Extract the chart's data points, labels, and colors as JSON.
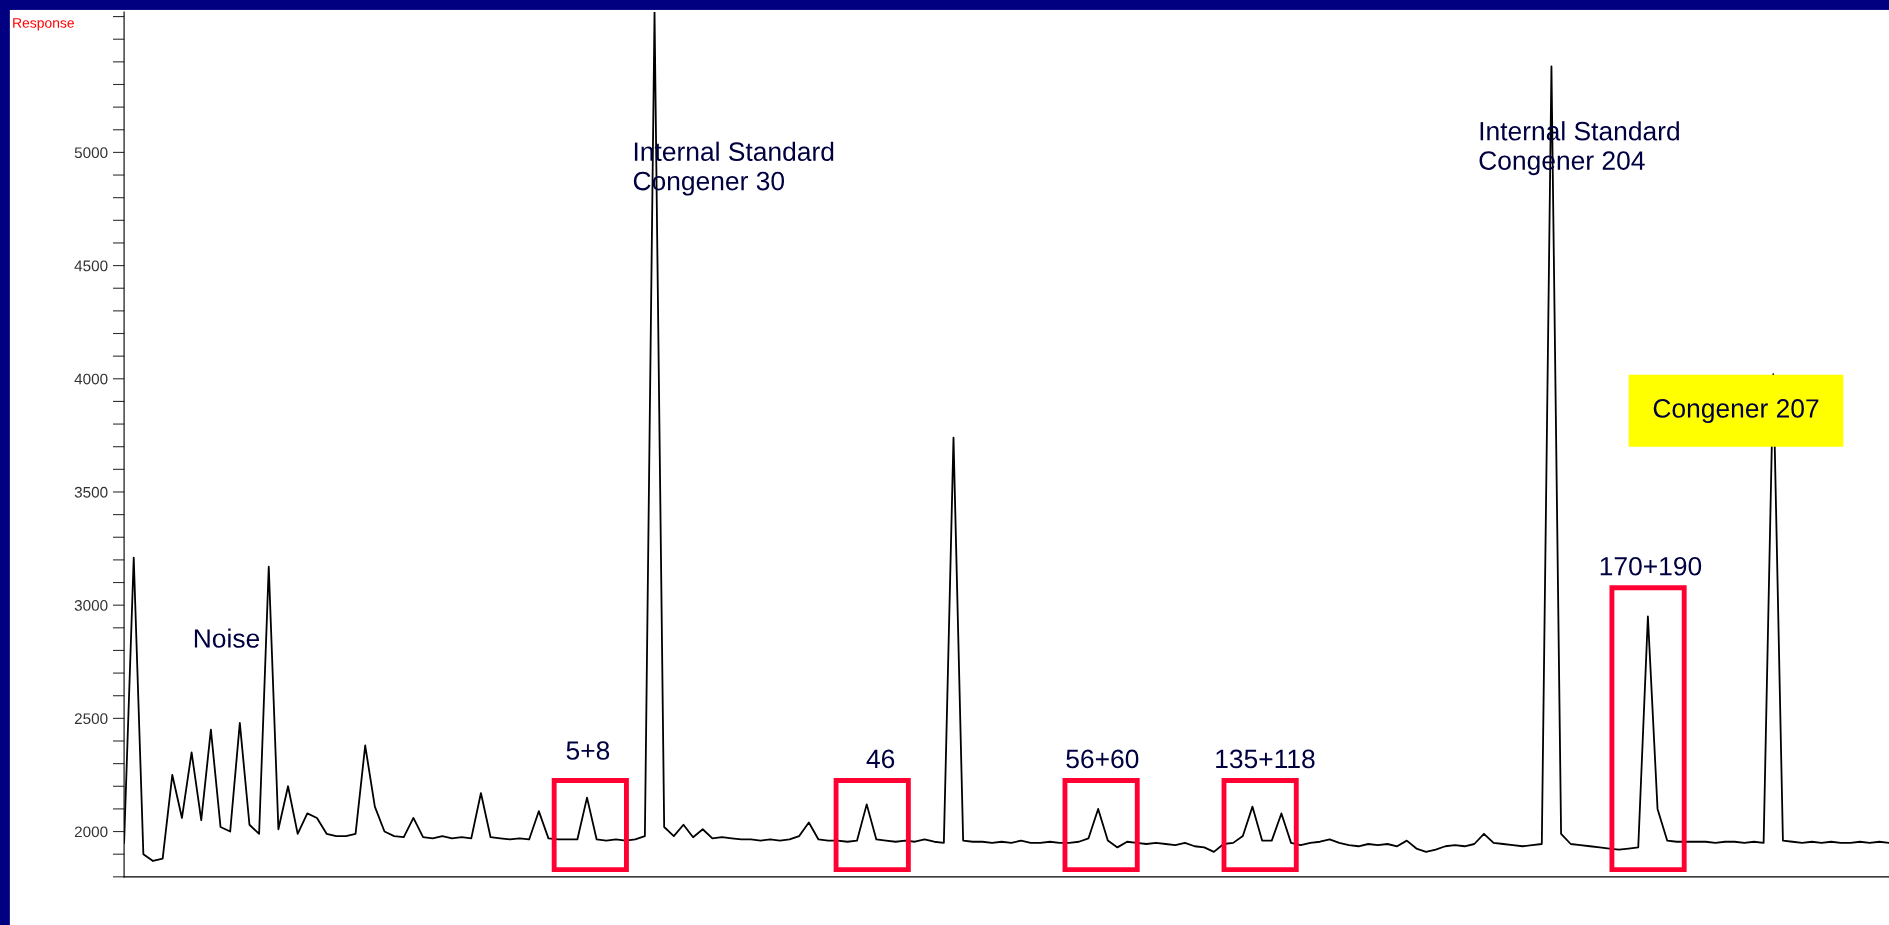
{
  "chart_data": {
    "type": "line",
    "ylabel": "Response",
    "categories": [
      null,
      null,
      null,
      null,
      null,
      null,
      null,
      null,
      null,
      null,
      null,
      null,
      null,
      null,
      null,
      null,
      null,
      null,
      null,
      null,
      null,
      null,
      null,
      null,
      null,
      null,
      null,
      null,
      null,
      null,
      null,
      null,
      null,
      null,
      null,
      null,
      null,
      null,
      null,
      null,
      null,
      null,
      null,
      null,
      null,
      null,
      null,
      null,
      null,
      null,
      null,
      null,
      null,
      null,
      null,
      null,
      null,
      null,
      null,
      null,
      null,
      null,
      null,
      null,
      null,
      null,
      null,
      null,
      null,
      null,
      null,
      null,
      null,
      null,
      null,
      null,
      null,
      null,
      null,
      null,
      null,
      null,
      null,
      null,
      null,
      null,
      null,
      null,
      null,
      null,
      null,
      null,
      null,
      null,
      null,
      null,
      null,
      null,
      null,
      null,
      null,
      null,
      null,
      null,
      null,
      null,
      null,
      null,
      null,
      null,
      null,
      null,
      null,
      null,
      null,
      null,
      null,
      null,
      null,
      null,
      null,
      null,
      null,
      null,
      null,
      null,
      null,
      null,
      null,
      null,
      null,
      null,
      null,
      null,
      null,
      null,
      null,
      null,
      null,
      null,
      null,
      null,
      null,
      null,
      null,
      null,
      null,
      null,
      null,
      null,
      null,
      null,
      null,
      null,
      null,
      null,
      null,
      null,
      null,
      null,
      null,
      null,
      null,
      null,
      null,
      null,
      null,
      null,
      null,
      null,
      null,
      null,
      null,
      null,
      null,
      null,
      null,
      null,
      null,
      null,
      null,
      null,
      null,
      null
    ],
    "series": [
      {
        "color": "#000000",
        "values": [
          1950,
          3210,
          1900,
          1870,
          1880,
          2250,
          2060,
          2350,
          2050,
          2450,
          2020,
          2000,
          2480,
          2030,
          1990,
          3170,
          2010,
          2200,
          1990,
          2080,
          2060,
          1990,
          1980,
          1980,
          1990,
          2380,
          2110,
          2000,
          1980,
          1975,
          2060,
          1975,
          1970,
          1980,
          1970,
          1975,
          1970,
          2170,
          1975,
          1970,
          1965,
          1970,
          1965,
          2090,
          1970,
          1965,
          1965,
          1965,
          2150,
          1965,
          1960,
          1965,
          1960,
          1965,
          1980,
          5620,
          2020,
          1980,
          2030,
          1975,
          2010,
          1970,
          1975,
          1970,
          1965,
          1965,
          1960,
          1965,
          1960,
          1965,
          1980,
          2040,
          1965,
          1960,
          1960,
          1955,
          1960,
          2120,
          1965,
          1960,
          1955,
          1960,
          1955,
          1965,
          1955,
          1950,
          3740,
          1960,
          1955,
          1955,
          1950,
          1955,
          1950,
          1960,
          1950,
          1950,
          1955,
          1950,
          1950,
          1955,
          1970,
          2100,
          1960,
          1930,
          1955,
          1950,
          1945,
          1950,
          1945,
          1940,
          1950,
          1935,
          1930,
          1910,
          1945,
          1950,
          1980,
          2110,
          1960,
          1960,
          2080,
          1950,
          1940,
          1950,
          1955,
          1965,
          1950,
          1940,
          1935,
          1945,
          1940,
          1945,
          1935,
          1960,
          1925,
          1910,
          1920,
          1935,
          1940,
          1935,
          1945,
          1990,
          1950,
          1945,
          1940,
          1935,
          1940,
          1945,
          5380,
          1990,
          1945,
          1940,
          1935,
          1930,
          1925,
          1920,
          1925,
          1930,
          2950,
          2100,
          1960,
          1955,
          1955,
          1955,
          1955,
          1950,
          1955,
          1955,
          1950,
          1955,
          1950,
          4020,
          1960,
          1955,
          1950,
          1955,
          1950,
          1955,
          1950,
          1950,
          1955,
          1950,
          1955,
          1950
        ]
      }
    ],
    "ylim": [
      1800,
      5620
    ],
    "yticks": [
      {
        "value": 1800,
        "label": null
      },
      {
        "value": 1900,
        "label": null
      },
      2000,
      {
        "value": 2100,
        "label": null
      },
      {
        "value": 2200,
        "label": null
      },
      {
        "value": 2300,
        "label": null
      },
      {
        "value": 2400,
        "label": null
      },
      2500,
      {
        "value": 2600,
        "label": null
      },
      {
        "value": 2700,
        "label": null
      },
      {
        "value": 2800,
        "label": null
      },
      {
        "value": 2900,
        "label": null
      },
      3000,
      {
        "value": 3100,
        "label": null
      },
      {
        "value": 3200,
        "label": null
      },
      {
        "value": 3300,
        "label": null
      },
      {
        "value": 3400,
        "label": null
      },
      3500,
      {
        "value": 3600,
        "label": null
      },
      {
        "value": 3700,
        "label": null
      },
      {
        "value": 3800,
        "label": null
      },
      {
        "value": 3900,
        "label": null
      },
      4000,
      {
        "value": 4100,
        "label": null
      },
      {
        "value": 4200,
        "label": null
      },
      {
        "value": 4300,
        "label": null
      },
      {
        "value": 4400,
        "label": null
      },
      4500,
      {
        "value": 4600,
        "label": null
      },
      {
        "value": 4700,
        "label": null
      },
      {
        "value": 4800,
        "label": null
      },
      {
        "value": 4900,
        "label": null
      },
      5000,
      {
        "value": 5100,
        "label": null
      },
      {
        "value": 5200,
        "label": null
      },
      {
        "value": 5300,
        "label": null
      },
      {
        "value": 5400,
        "label": null
      },
      {
        "value": 5500,
        "label": null
      },
      {
        "value": 5600,
        "label": null
      }
    ],
    "tick_labels": "y",
    "grid": false,
    "legend": false,
    "annotations": [
      "Noise",
      "5+8",
      "46",
      "56+60",
      "135+118",
      "170+190",
      "Internal Standard\nCongener 30",
      "Internal Standard\nCongener 204",
      "Congener 207"
    ]
  }
}
